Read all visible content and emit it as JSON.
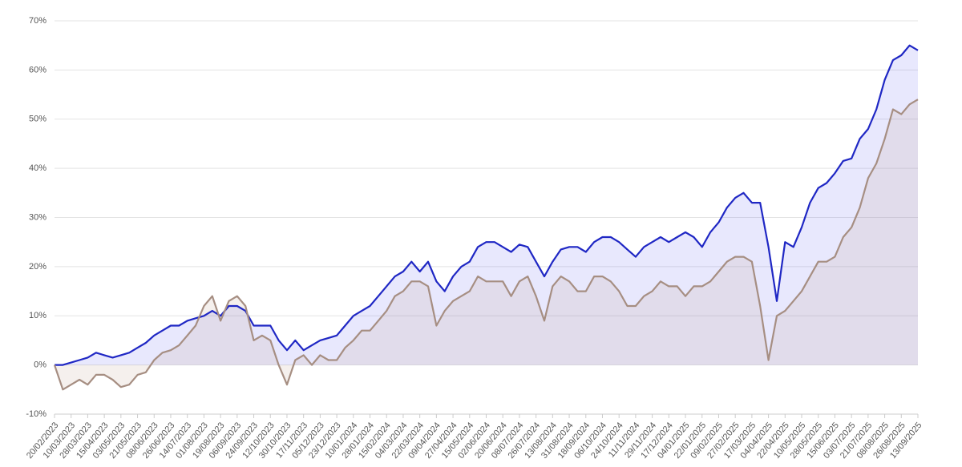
{
  "chart_data": {
    "type": "line",
    "categories": [
      "20/02/2023",
      null,
      "10/03/2023",
      null,
      "28/03/2023",
      null,
      "15/04/2023",
      null,
      "03/05/2023",
      null,
      "21/05/2023",
      null,
      "08/06/2023",
      null,
      "26/06/2023",
      null,
      "14/07/2023",
      null,
      "01/08/2023",
      null,
      "19/08/2023",
      null,
      "06/09/2023",
      null,
      "24/09/2023",
      null,
      "12/10/2023",
      null,
      "30/10/2023",
      null,
      "17/11/2023",
      null,
      "05/12/2023",
      null,
      "23/12/2023",
      null,
      "10/01/2024",
      null,
      "28/01/2024",
      null,
      "15/02/2024",
      null,
      "04/03/2024",
      null,
      "22/03/2024",
      null,
      "09/04/2024",
      null,
      "27/04/2024",
      null,
      "15/05/2024",
      null,
      "02/06/2024",
      null,
      "20/06/2024",
      null,
      "08/07/2024",
      null,
      "26/07/2024",
      null,
      "13/08/2024",
      null,
      "31/08/2024",
      null,
      "18/09/2024",
      null,
      "06/10/2024",
      null,
      "24/10/2024",
      null,
      "11/11/2024",
      null,
      "29/11/2024",
      null,
      "17/12/2024",
      null,
      "04/01/2025",
      null,
      "22/01/2025",
      null,
      "09/02/2025",
      null,
      "27/02/2025",
      null,
      "17/03/2025",
      null,
      "04/04/2025",
      null,
      "22/04/2025",
      null,
      "10/05/2025",
      null,
      "28/05/2025",
      null,
      "15/06/2025",
      null,
      "03/07/2025",
      null,
      "21/07/2025",
      null,
      "08/08/2025",
      null,
      "26/08/2025",
      null,
      "13/09/2025"
    ],
    "series": [
      {
        "color": "#1f27c4",
        "fill": "rgba(110,110,240,0.16)",
        "values": [
          0,
          0,
          0.5,
          1,
          1.5,
          2.5,
          2,
          1.5,
          2,
          2.5,
          3.5,
          4.5,
          6,
          7,
          8,
          8,
          9,
          9.5,
          10,
          11,
          10,
          12,
          12,
          11,
          8,
          8,
          8,
          5,
          3,
          5,
          3,
          4,
          5,
          5.5,
          6,
          8,
          10,
          11,
          12,
          14,
          16,
          18,
          19,
          21,
          19,
          21,
          17,
          15,
          18,
          20,
          21,
          24,
          25,
          25,
          24,
          23,
          24.5,
          24,
          21,
          18,
          21,
          23.5,
          24,
          24,
          23,
          25,
          26,
          26,
          25,
          23.5,
          22,
          24,
          25,
          26,
          25,
          26,
          27,
          26,
          24,
          27,
          29,
          32,
          34,
          35,
          33,
          33,
          24,
          13,
          25,
          24,
          28,
          33,
          36,
          37,
          39,
          41.5,
          42,
          46,
          48,
          52,
          58,
          62,
          63,
          65,
          64
        ]
      },
      {
        "color": "#a68e82",
        "fill": "rgba(190,160,140,0.16)",
        "values": [
          0,
          -5,
          -4,
          -3,
          -4,
          -2,
          -2,
          -3,
          -4.5,
          -4,
          -2,
          -1.5,
          1,
          2.5,
          3,
          4,
          6,
          8,
          12,
          14,
          9,
          13,
          14,
          12,
          5,
          6,
          5,
          0,
          -4,
          1,
          2,
          0,
          2,
          1,
          1,
          3.5,
          5,
          7,
          7,
          9,
          11,
          14,
          15,
          17,
          17,
          16,
          8,
          11,
          13,
          14,
          15,
          18,
          17,
          17,
          17,
          14,
          17,
          18,
          14,
          9,
          16,
          18,
          17,
          15,
          15,
          18,
          18,
          17,
          15,
          12,
          12,
          14,
          15,
          17,
          16,
          16,
          14,
          16,
          16,
          17,
          19,
          21,
          22,
          22,
          21,
          12,
          1,
          10,
          11,
          13,
          15,
          18,
          21,
          21,
          22,
          26,
          28,
          32,
          38,
          41,
          46,
          52,
          51,
          53,
          54
        ]
      }
    ],
    "ylim": [
      -10,
      70
    ],
    "yticks": [
      {
        "value": -10,
        "label": "-10%"
      },
      {
        "value": 0,
        "label": "0%"
      },
      {
        "value": 10,
        "label": "10%"
      },
      {
        "value": 20,
        "label": "20%"
      },
      {
        "value": 30,
        "label": "30%"
      },
      {
        "value": 40,
        "label": "40%"
      },
      {
        "value": 50,
        "label": "50%"
      },
      {
        "value": 60,
        "label": "60%"
      },
      {
        "value": 70,
        "label": "70%"
      }
    ],
    "grid": true
  }
}
